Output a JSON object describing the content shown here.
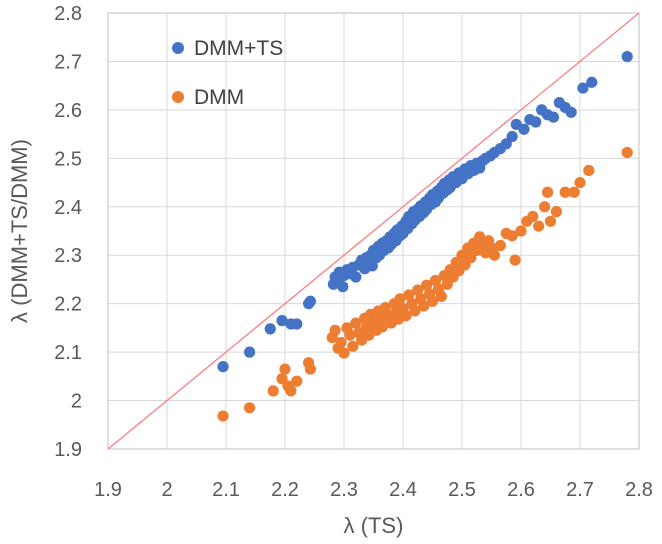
{
  "chart_data": {
    "type": "scatter",
    "title": "",
    "xlabel": "λ (TS)",
    "ylabel": "λ  (DMM+TS/DMM)",
    "xlim": [
      1.9,
      2.8
    ],
    "ylim": [
      1.9,
      2.8
    ],
    "x_ticks": [
      "1.9",
      "2",
      "2.1",
      "2.2",
      "2.3",
      "2.4",
      "2.5",
      "2.6",
      "2.7",
      "2.8"
    ],
    "y_ticks": [
      "1.9",
      "2",
      "2.1",
      "2.2",
      "2.3",
      "2.4",
      "2.5",
      "2.6",
      "2.7",
      "2.8"
    ],
    "grid": true,
    "legend_position": "top-left",
    "reference_line": {
      "from": [
        1.9,
        1.9
      ],
      "to": [
        2.8,
        2.8
      ],
      "color": "#ff7c80"
    },
    "series": [
      {
        "name": "DMM+TS",
        "color": "#4472c4",
        "points": [
          [
            2.095,
            2.07
          ],
          [
            2.14,
            2.1
          ],
          [
            2.175,
            2.148
          ],
          [
            2.195,
            2.165
          ],
          [
            2.21,
            2.158
          ],
          [
            2.22,
            2.158
          ],
          [
            2.24,
            2.2
          ],
          [
            2.243,
            2.205
          ],
          [
            2.282,
            2.24
          ],
          [
            2.285,
            2.255
          ],
          [
            2.29,
            2.248
          ],
          [
            2.292,
            2.265
          ],
          [
            2.298,
            2.235
          ],
          [
            2.3,
            2.258
          ],
          [
            2.305,
            2.27
          ],
          [
            2.31,
            2.262
          ],
          [
            2.315,
            2.275
          ],
          [
            2.32,
            2.255
          ],
          [
            2.325,
            2.28
          ],
          [
            2.33,
            2.29
          ],
          [
            2.335,
            2.272
          ],
          [
            2.338,
            2.295
          ],
          [
            2.342,
            2.285
          ],
          [
            2.345,
            2.3
          ],
          [
            2.348,
            2.278
          ],
          [
            2.35,
            2.31
          ],
          [
            2.355,
            2.295
          ],
          [
            2.358,
            2.318
          ],
          [
            2.36,
            2.3
          ],
          [
            2.365,
            2.325
          ],
          [
            2.368,
            2.31
          ],
          [
            2.372,
            2.33
          ],
          [
            2.375,
            2.315
          ],
          [
            2.378,
            2.338
          ],
          [
            2.38,
            2.322
          ],
          [
            2.385,
            2.345
          ],
          [
            2.388,
            2.33
          ],
          [
            2.39,
            2.352
          ],
          [
            2.395,
            2.34
          ],
          [
            2.398,
            2.36
          ],
          [
            2.4,
            2.345
          ],
          [
            2.405,
            2.37
          ],
          [
            2.408,
            2.355
          ],
          [
            2.41,
            2.38
          ],
          [
            2.415,
            2.365
          ],
          [
            2.418,
            2.39
          ],
          [
            2.42,
            2.372
          ],
          [
            2.425,
            2.395
          ],
          [
            2.428,
            2.38
          ],
          [
            2.43,
            2.402
          ],
          [
            2.435,
            2.388
          ],
          [
            2.438,
            2.41
          ],
          [
            2.44,
            2.395
          ],
          [
            2.445,
            2.418
          ],
          [
            2.448,
            2.405
          ],
          [
            2.45,
            2.425
          ],
          [
            2.455,
            2.41
          ],
          [
            2.458,
            2.432
          ],
          [
            2.46,
            2.418
          ],
          [
            2.465,
            2.44
          ],
          [
            2.468,
            2.428
          ],
          [
            2.47,
            2.448
          ],
          [
            2.475,
            2.435
          ],
          [
            2.478,
            2.455
          ],
          [
            2.48,
            2.44
          ],
          [
            2.485,
            2.462
          ],
          [
            2.49,
            2.45
          ],
          [
            2.495,
            2.47
          ],
          [
            2.5,
            2.458
          ],
          [
            2.505,
            2.478
          ],
          [
            2.51,
            2.468
          ],
          [
            2.515,
            2.485
          ],
          [
            2.52,
            2.475
          ],
          [
            2.525,
            2.49
          ],
          [
            2.53,
            2.48
          ],
          [
            2.535,
            2.495
          ],
          [
            2.54,
            2.5
          ],
          [
            2.548,
            2.505
          ],
          [
            2.555,
            2.512
          ],
          [
            2.565,
            2.52
          ],
          [
            2.575,
            2.53
          ],
          [
            2.585,
            2.545
          ],
          [
            2.592,
            2.57
          ],
          [
            2.605,
            2.56
          ],
          [
            2.615,
            2.58
          ],
          [
            2.625,
            2.575
          ],
          [
            2.635,
            2.6
          ],
          [
            2.645,
            2.59
          ],
          [
            2.655,
            2.585
          ],
          [
            2.665,
            2.615
          ],
          [
            2.675,
            2.605
          ],
          [
            2.685,
            2.595
          ],
          [
            2.705,
            2.645
          ],
          [
            2.72,
            2.657
          ],
          [
            2.78,
            2.71
          ]
        ]
      },
      {
        "name": "DMM",
        "color": "#ed7d31",
        "points": [
          [
            2.095,
            1.968
          ],
          [
            2.14,
            1.985
          ],
          [
            2.18,
            2.02
          ],
          [
            2.195,
            2.045
          ],
          [
            2.2,
            2.065
          ],
          [
            2.205,
            2.03
          ],
          [
            2.21,
            2.02
          ],
          [
            2.22,
            2.04
          ],
          [
            2.24,
            2.078
          ],
          [
            2.243,
            2.065
          ],
          [
            2.28,
            2.13
          ],
          [
            2.285,
            2.145
          ],
          [
            2.29,
            2.108
          ],
          [
            2.295,
            2.12
          ],
          [
            2.3,
            2.098
          ],
          [
            2.305,
            2.15
          ],
          [
            2.31,
            2.135
          ],
          [
            2.315,
            2.112
          ],
          [
            2.32,
            2.16
          ],
          [
            2.325,
            2.14
          ],
          [
            2.33,
            2.125
          ],
          [
            2.335,
            2.17
          ],
          [
            2.338,
            2.152
          ],
          [
            2.342,
            2.135
          ],
          [
            2.345,
            2.178
          ],
          [
            2.35,
            2.16
          ],
          [
            2.355,
            2.145
          ],
          [
            2.358,
            2.185
          ],
          [
            2.362,
            2.168
          ],
          [
            2.365,
            2.152
          ],
          [
            2.37,
            2.192
          ],
          [
            2.375,
            2.175
          ],
          [
            2.38,
            2.16
          ],
          [
            2.385,
            2.2
          ],
          [
            2.388,
            2.182
          ],
          [
            2.392,
            2.168
          ],
          [
            2.395,
            2.21
          ],
          [
            2.4,
            2.19
          ],
          [
            2.405,
            2.175
          ],
          [
            2.41,
            2.218
          ],
          [
            2.415,
            2.2
          ],
          [
            2.42,
            2.185
          ],
          [
            2.425,
            2.228
          ],
          [
            2.43,
            2.21
          ],
          [
            2.435,
            2.195
          ],
          [
            2.44,
            2.238
          ],
          [
            2.445,
            2.22
          ],
          [
            2.45,
            2.205
          ],
          [
            2.455,
            2.248
          ],
          [
            2.46,
            2.23
          ],
          [
            2.465,
            2.215
          ],
          [
            2.47,
            2.258
          ],
          [
            2.475,
            2.24
          ],
          [
            2.48,
            2.27
          ],
          [
            2.485,
            2.255
          ],
          [
            2.49,
            2.285
          ],
          [
            2.495,
            2.268
          ],
          [
            2.5,
            2.3
          ],
          [
            2.505,
            2.28
          ],
          [
            2.51,
            2.315
          ],
          [
            2.515,
            2.295
          ],
          [
            2.52,
            2.325
          ],
          [
            2.525,
            2.31
          ],
          [
            2.53,
            2.338
          ],
          [
            2.535,
            2.32
          ],
          [
            2.54,
            2.305
          ],
          [
            2.545,
            2.33
          ],
          [
            2.55,
            2.315
          ],
          [
            2.555,
            2.3
          ],
          [
            2.565,
            2.32
          ],
          [
            2.575,
            2.345
          ],
          [
            2.585,
            2.34
          ],
          [
            2.59,
            2.29
          ],
          [
            2.6,
            2.35
          ],
          [
            2.61,
            2.37
          ],
          [
            2.62,
            2.38
          ],
          [
            2.63,
            2.36
          ],
          [
            2.64,
            2.4
          ],
          [
            2.645,
            2.43
          ],
          [
            2.65,
            2.37
          ],
          [
            2.66,
            2.39
          ],
          [
            2.675,
            2.43
          ],
          [
            2.69,
            2.43
          ],
          [
            2.7,
            2.45
          ],
          [
            2.715,
            2.475
          ],
          [
            2.78,
            2.512
          ]
        ]
      }
    ]
  }
}
